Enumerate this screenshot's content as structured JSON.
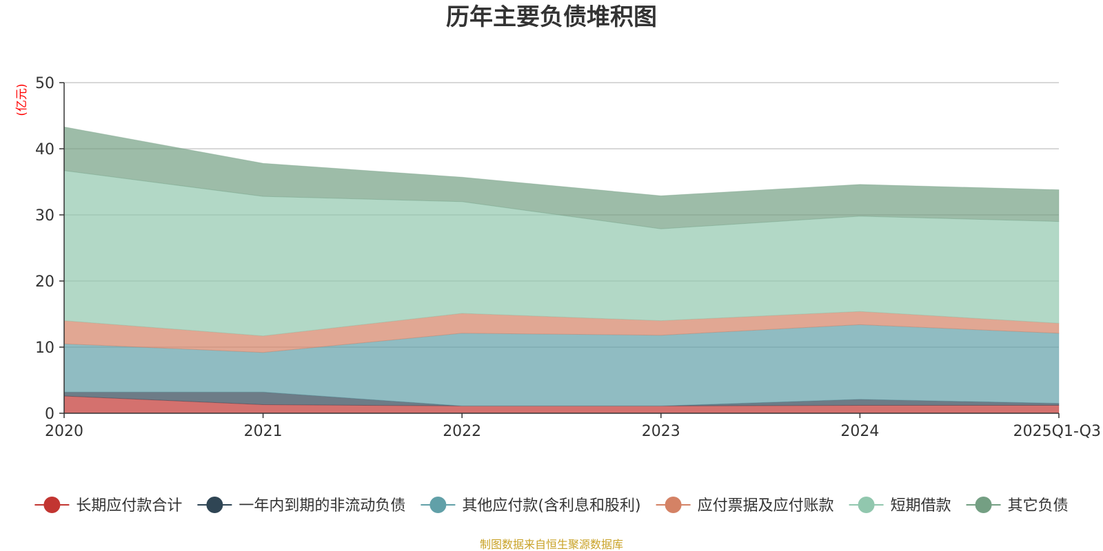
{
  "chart_data": {
    "type": "area",
    "stacked": true,
    "title": "历年主要负债堆积图",
    "ylabel": "(亿元)",
    "ylim": [
      0,
      50
    ],
    "yticks": [
      0,
      10,
      20,
      30,
      40,
      50
    ],
    "grid": true,
    "legend_position": "bottom",
    "categories": [
      "2020",
      "2021",
      "2022",
      "2023",
      "2024",
      "2025Q1-Q3"
    ],
    "series": [
      {
        "name": "长期应付款合计",
        "color": "#c23531",
        "values": [
          2.6,
          1.3,
          1.1,
          1.1,
          1.2,
          1.2
        ]
      },
      {
        "name": "一年内到期的非流动负债",
        "color": "#2f4554",
        "values": [
          0.6,
          1.9,
          0.0,
          0.0,
          0.9,
          0.3
        ]
      },
      {
        "name": "其他应付款(含利息和股利)",
        "color": "#61a0a8",
        "values": [
          7.3,
          6.0,
          11.0,
          10.7,
          11.3,
          10.6
        ]
      },
      {
        "name": "应付票据及应付账款",
        "color": "#d48265",
        "values": [
          3.5,
          2.5,
          3.0,
          2.2,
          2.0,
          1.5
        ]
      },
      {
        "name": "短期借款",
        "color": "#91c7ae",
        "values": [
          22.7,
          21.1,
          16.9,
          13.9,
          14.4,
          15.4
        ]
      },
      {
        "name": "其它负债",
        "color": "#749f83",
        "values": [
          6.6,
          5.0,
          3.7,
          5.0,
          4.8,
          4.8
        ]
      }
    ],
    "source_note": "制图数据来自恒生聚源数据库",
    "colors": {
      "unit": "#ff0000",
      "source": "#c9a227",
      "grid": "#cccccc",
      "axis": "#333333"
    }
  }
}
